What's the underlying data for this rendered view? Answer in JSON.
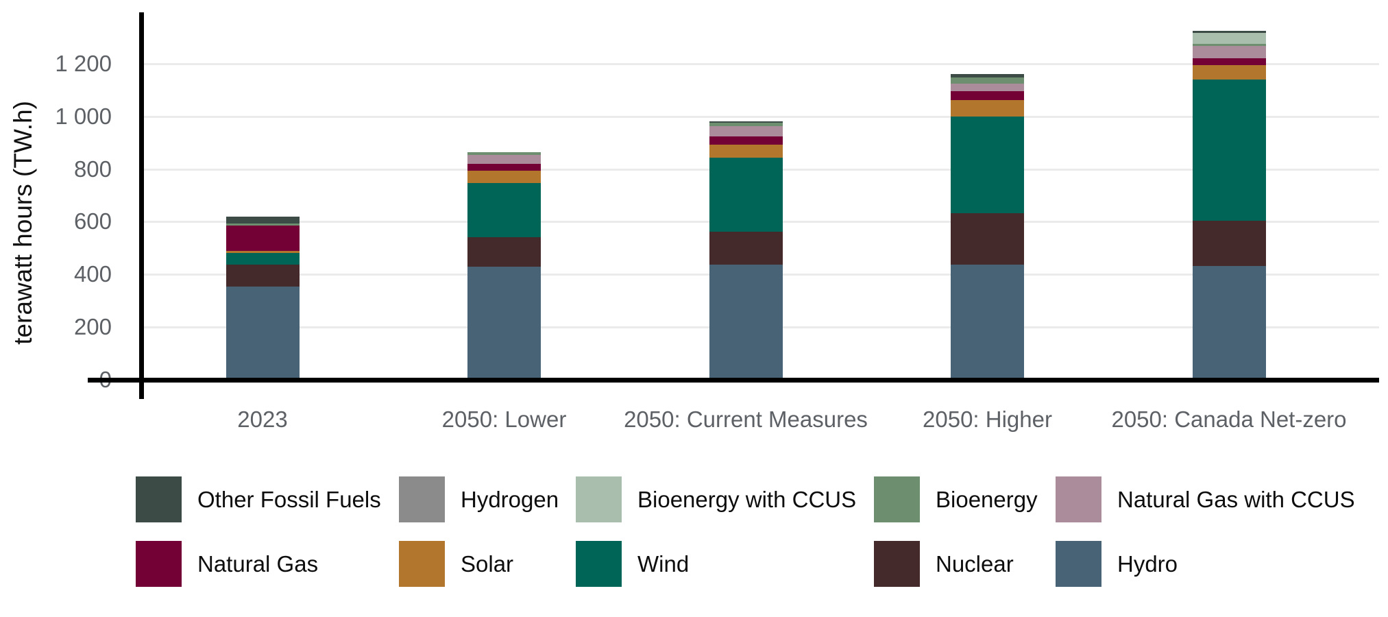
{
  "y_axis": {
    "title": "terawatt hours (TW.h)",
    "ticks": [
      {
        "value": 0,
        "label": "0"
      },
      {
        "value": 200,
        "label": "200"
      },
      {
        "value": 400,
        "label": "400"
      },
      {
        "value": 600,
        "label": "600"
      },
      {
        "value": 800,
        "label": "800"
      },
      {
        "value": 1000,
        "label": "1 000"
      },
      {
        "value": 1200,
        "label": "1 200"
      }
    ]
  },
  "chart_data": {
    "type": "bar",
    "stacked": true,
    "unit": "TW.h",
    "title": "",
    "xlabel": "",
    "ylabel": "terawatt hours (TW.h)",
    "ylim": [
      0,
      1300
    ],
    "grid": "horizontal",
    "legend_position": "bottom",
    "categories": [
      "2023",
      "2050: Lower",
      "2050: Current Measures",
      "2050: Higher",
      "2050: Canada Net-zero"
    ],
    "series": [
      {
        "name": "Hydro",
        "color": "#486276",
        "values": [
          355,
          429,
          436,
          436,
          433
        ]
      },
      {
        "name": "Nuclear",
        "color": "#452a2c",
        "values": [
          82,
          113,
          124,
          195,
          172
        ]
      },
      {
        "name": "Wind",
        "color": "#006457",
        "values": [
          44,
          205,
          280,
          366,
          537
        ]
      },
      {
        "name": "Solar",
        "color": "#b3762d",
        "values": [
          9,
          47,
          50,
          63,
          54
        ]
      },
      {
        "name": "Natural Gas",
        "color": "#730136",
        "values": [
          96,
          26,
          31,
          34,
          26
        ]
      },
      {
        "name": "Natural Gas with CCUS",
        "color": "#ab8c9b",
        "values": [
          0,
          33,
          40,
          29,
          47
        ]
      },
      {
        "name": "Bioenergy",
        "color": "#6d8e6f",
        "values": [
          8,
          11,
          14,
          24,
          8
        ]
      },
      {
        "name": "Bioenergy with CCUS",
        "color": "#a9bead",
        "values": [
          0,
          0,
          0,
          0,
          41
        ]
      },
      {
        "name": "Hydrogen",
        "color": "#8b8b8b",
        "values": [
          0,
          0,
          0,
          0,
          0
        ]
      },
      {
        "name": "Other Fossil Fuels",
        "color": "#3d4b47",
        "values": [
          25,
          0,
          6,
          12,
          9
        ]
      }
    ],
    "totals": [
      619,
      864,
      981,
      1159,
      1327
    ]
  },
  "legend": {
    "rows": [
      [
        "Other Fossil Fuels",
        "Hydrogen",
        "Bioenergy with CCUS",
        "Bioenergy",
        "Natural Gas with CCUS"
      ],
      [
        "Natural Gas",
        "Solar",
        "Wind",
        "Nuclear",
        "Hydro"
      ]
    ]
  }
}
